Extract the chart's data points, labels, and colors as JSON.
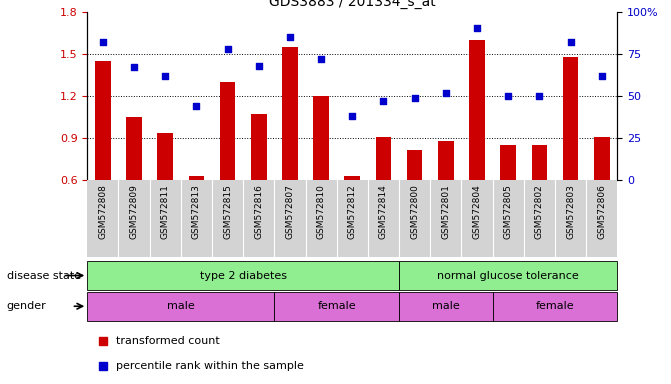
{
  "title": "GDS3883 / 201334_s_at",
  "samples": [
    "GSM572808",
    "GSM572809",
    "GSM572811",
    "GSM572813",
    "GSM572815",
    "GSM572816",
    "GSM572807",
    "GSM572810",
    "GSM572812",
    "GSM572814",
    "GSM572800",
    "GSM572801",
    "GSM572804",
    "GSM572805",
    "GSM572802",
    "GSM572803",
    "GSM572806"
  ],
  "bar_values": [
    1.45,
    1.05,
    0.94,
    0.63,
    1.3,
    1.07,
    1.55,
    1.2,
    0.63,
    0.91,
    0.82,
    0.88,
    1.6,
    0.855,
    0.855,
    1.48,
    0.91
  ],
  "scatter_values": [
    82,
    67,
    62,
    44,
    78,
    68,
    85,
    72,
    38,
    47,
    49,
    52,
    90,
    50,
    50,
    82,
    62
  ],
  "ylim_left": [
    0.6,
    1.8
  ],
  "ylim_right": [
    0,
    100
  ],
  "yticks_left": [
    0.6,
    0.9,
    1.2,
    1.5,
    1.8
  ],
  "yticks_right": [
    0,
    25,
    50,
    75,
    100
  ],
  "bar_color": "#cc0000",
  "scatter_color": "#0000cc",
  "ds_groups": [
    {
      "label": "type 2 diabetes",
      "start": 0,
      "end": 10
    },
    {
      "label": "normal glucose tolerance",
      "start": 10,
      "end": 17
    }
  ],
  "gender_groups": [
    {
      "label": "male",
      "start": 0,
      "end": 6
    },
    {
      "label": "female",
      "start": 6,
      "end": 10
    },
    {
      "label": "male",
      "start": 10,
      "end": 13
    },
    {
      "label": "female",
      "start": 13,
      "end": 17
    }
  ],
  "ds_color": "#90ee90",
  "gender_color": "#da70d6",
  "legend_items": [
    {
      "label": "transformed count",
      "color": "#cc0000"
    },
    {
      "label": "percentile rank within the sample",
      "color": "#0000cc"
    }
  ],
  "background_color": "#ffffff",
  "row_label_disease": "disease state",
  "row_label_gender": "gender",
  "xlabel_bg": "#d3d3d3"
}
